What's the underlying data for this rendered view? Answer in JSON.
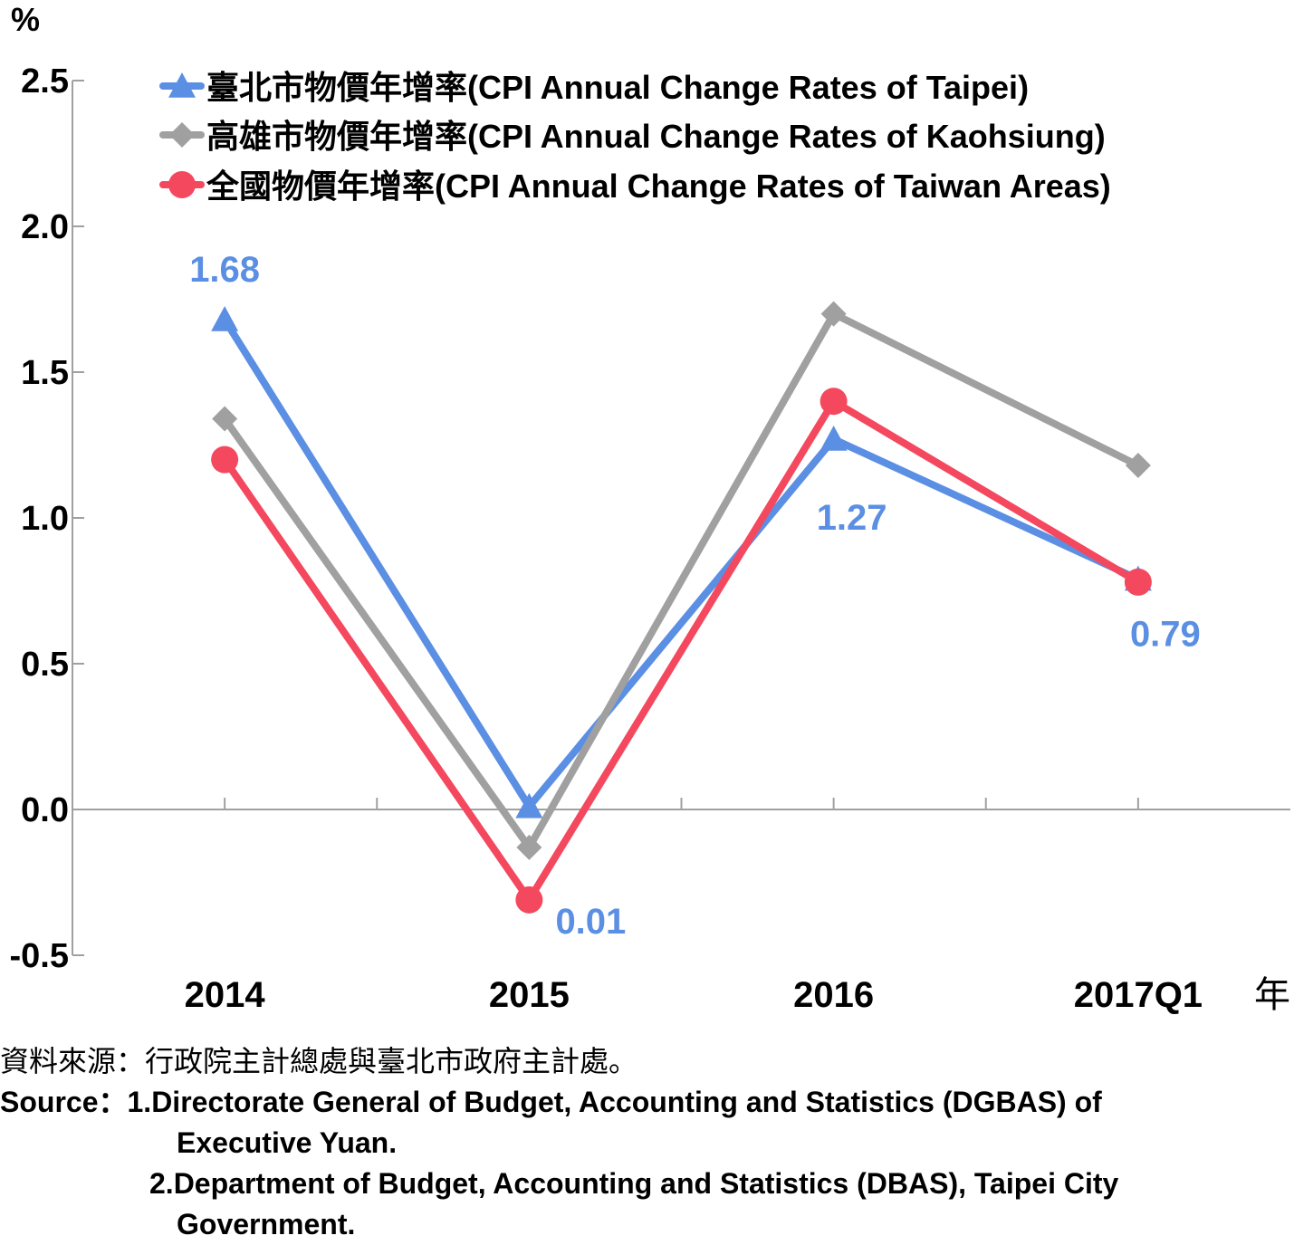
{
  "chart_data": {
    "type": "line",
    "unit_label": "%",
    "x_unit_label": "年",
    "categories": [
      "2014",
      "2015",
      "2016",
      "2017Q1"
    ],
    "ylim": [
      -0.5,
      2.5
    ],
    "yticks": [
      "2.5",
      "2.0",
      "1.5",
      "1.0",
      "0.5",
      "0.0",
      "-0.5"
    ],
    "ytick_values": [
      2.5,
      2.0,
      1.5,
      1.0,
      0.5,
      0.0,
      -0.5
    ],
    "legend_position": "top",
    "series": [
      {
        "name": "臺北市物價年增率(CPI Annual Change Rates of Taipei)",
        "marker": "triangle",
        "color": "#5B8FE3",
        "values": [
          1.68,
          0.01,
          1.27,
          0.79
        ],
        "labels": [
          "1.68",
          "0.01",
          "1.27",
          "0.79"
        ]
      },
      {
        "name": "高雄市物價年增率(CPI Annual Change Rates of Kaohsiung)",
        "marker": "diamond",
        "color": "#A0A0A0",
        "values": [
          1.34,
          -0.13,
          1.7,
          1.18
        ]
      },
      {
        "name": "全國物價年增率(CPI Annual Change Rates of Taiwan Areas)",
        "marker": "circle",
        "color": "#F4485F",
        "values": [
          1.2,
          -0.31,
          1.4,
          0.78
        ]
      }
    ]
  },
  "source": {
    "zh": "資料來源：行政院主計總處與臺北市政府主計處。",
    "prefix": "Source：",
    "line1": "1.Directorate General of Budget, Accounting and Statistics (DGBAS) of",
    "line1b": "Executive Yuan.",
    "line2": "2.Department of Budget, Accounting and Statistics (DBAS), Taipei City",
    "line2b": "Government."
  }
}
